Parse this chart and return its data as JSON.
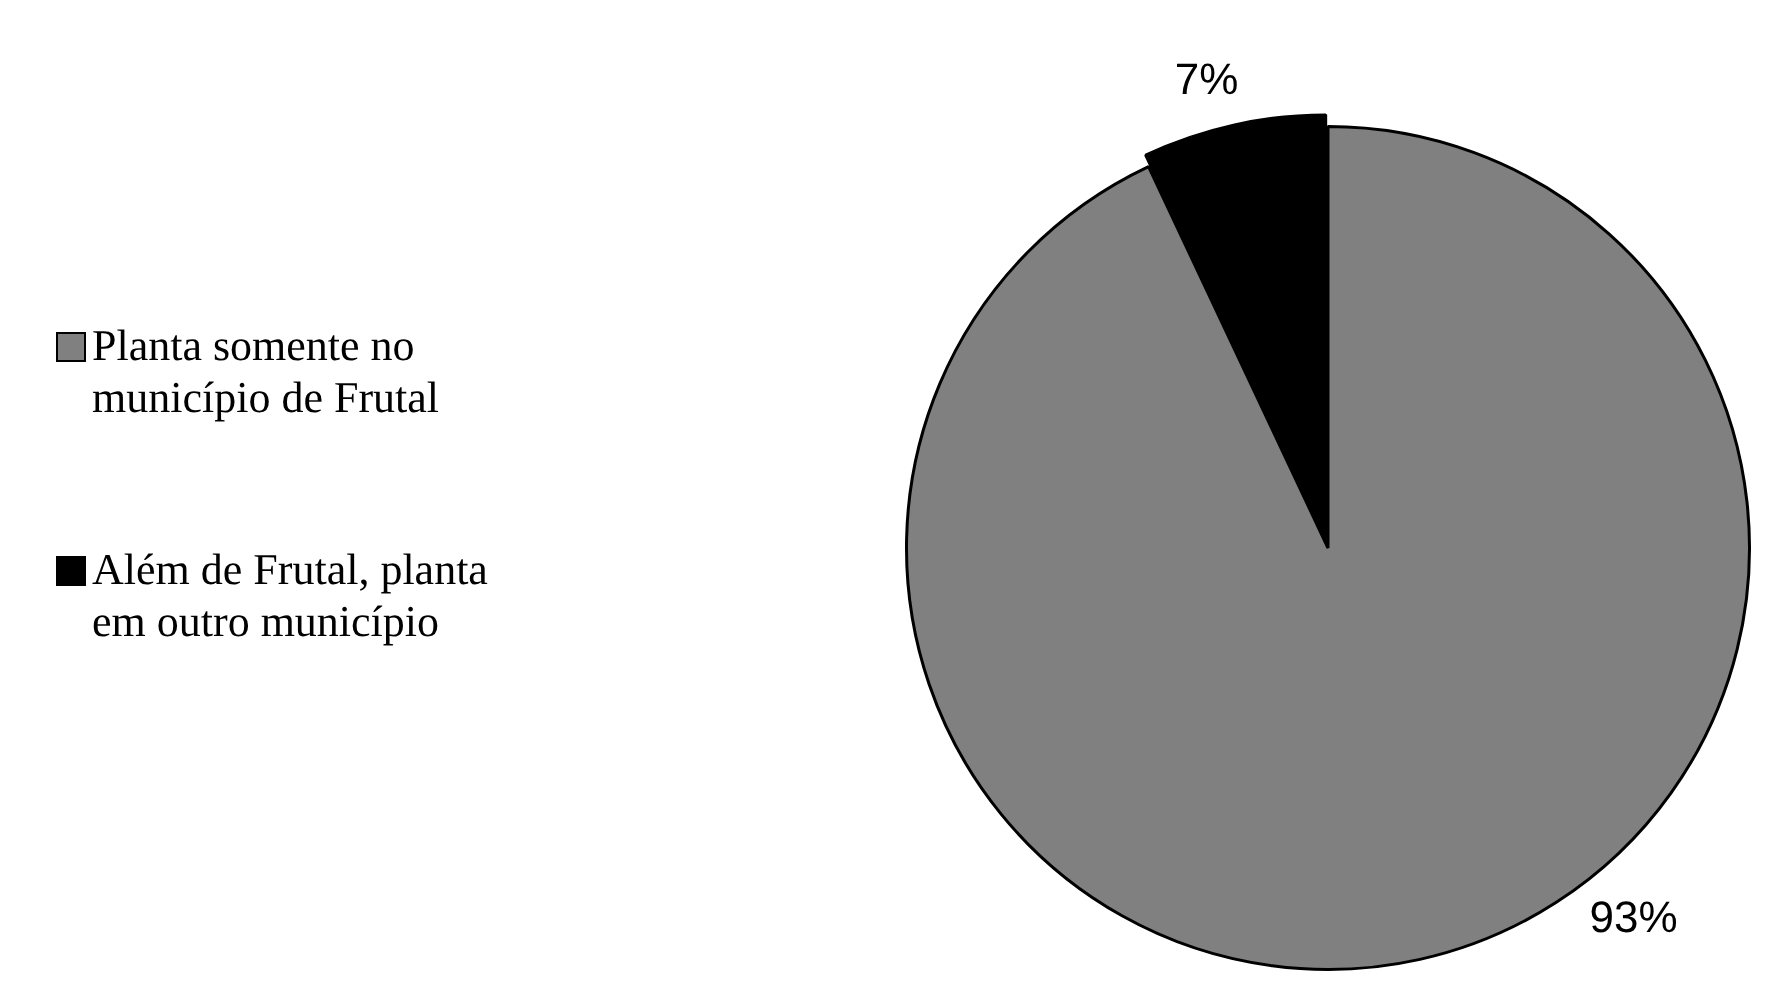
{
  "chart_data": {
    "type": "pie",
    "categories": [
      "Planta somente no município de Frutal",
      "Além de Frutal, planta em outro município"
    ],
    "values": [
      93,
      7
    ],
    "colors": [
      "#808080",
      "#000000"
    ],
    "value_labels": [
      "93%",
      "7%"
    ],
    "legend": "left"
  }
}
